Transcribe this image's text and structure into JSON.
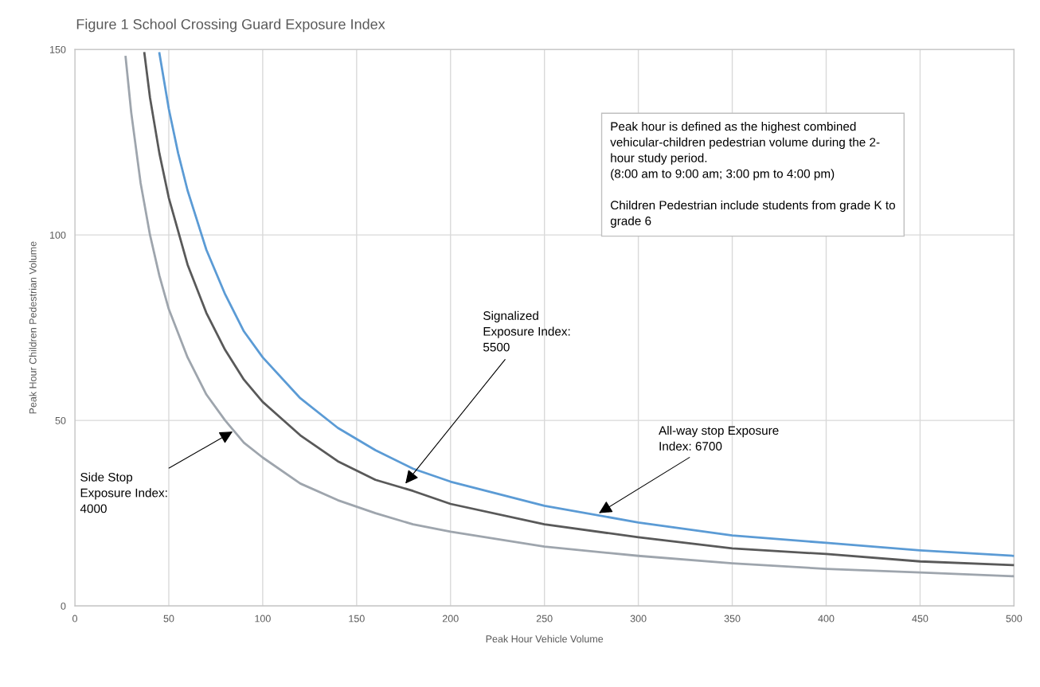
{
  "chart_data": {
    "type": "line",
    "title": "Figure 1 School Crossing Guard Exposure Index",
    "xlabel": "Peak Hour Vehicle Volume",
    "ylabel": "Peak Hour Children Pedestrian Volume",
    "xlim": [
      0,
      500
    ],
    "xticks": [
      0,
      50,
      100,
      150,
      200,
      250,
      300,
      350,
      400,
      450,
      500
    ],
    "ylim": [
      0,
      150
    ],
    "yticks": [
      0,
      50,
      100,
      150
    ],
    "grid": true,
    "series": [
      {
        "color": "#5b9bd5",
        "x": [
          45,
          50,
          55,
          60,
          70,
          80,
          90,
          100,
          120,
          140,
          160,
          180,
          200,
          250,
          300,
          350,
          400,
          450,
          500
        ],
        "values": [
          149,
          134,
          122,
          112,
          96,
          84,
          74,
          67,
          56,
          48,
          42,
          37,
          33.5,
          27,
          22.5,
          19,
          17,
          15,
          13.5
        ]
      },
      {
        "color": "#595959",
        "x": [
          37,
          40,
          45,
          50,
          60,
          70,
          80,
          90,
          100,
          120,
          140,
          160,
          180,
          200,
          250,
          300,
          350,
          400,
          450,
          500
        ],
        "values": [
          149,
          137,
          122,
          110,
          92,
          79,
          69,
          61,
          55,
          46,
          39,
          34,
          31,
          27.5,
          22,
          18.5,
          15.5,
          14,
          12,
          11
        ]
      },
      {
        "color": "#9ea5ad",
        "x": [
          27,
          30,
          35,
          40,
          45,
          50,
          60,
          70,
          80,
          90,
          100,
          120,
          140,
          160,
          180,
          200,
          250,
          300,
          350,
          400,
          450,
          500
        ],
        "values": [
          148,
          133,
          114,
          100,
          89,
          80,
          67,
          57,
          50,
          44,
          40,
          33,
          28.5,
          25,
          22,
          20,
          16,
          13.5,
          11.5,
          10,
          9,
          8
        ]
      }
    ],
    "annotations": [
      "Peak hour is defined as the highest combined\nvehicular-children pedestrian volume during the 2-\nhour study period.\n(8:00 am to 9:00 am; 3:00 pm to 4:00 pm)\n\nChildren Pedestrian include students from grade K to\ngrade 6",
      {
        "text": "Side Stop\nExposure Index:\n4000",
        "x": 84,
        "y": 47
      },
      {
        "text": "Signalized\nExposure Index:\n5500",
        "x": 176,
        "y": 33
      },
      {
        "text": "All-way stop Exposure\nIndex: 6700",
        "x": 279,
        "y": 25
      }
    ]
  }
}
